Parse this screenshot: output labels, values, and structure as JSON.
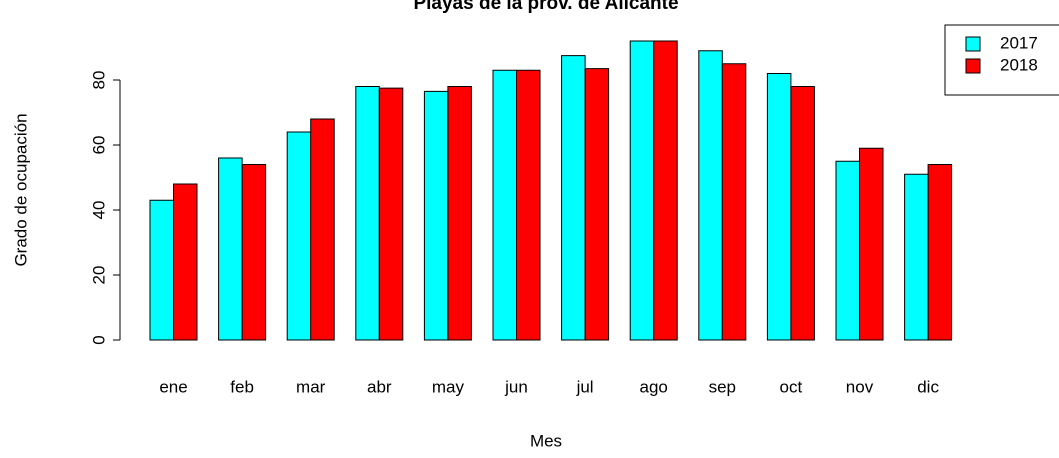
{
  "chart_data": {
    "type": "bar",
    "title": "Playas de la prov. de Alicante",
    "x_label": "Mes",
    "y_label": "Grado de ocupación",
    "categories": [
      "ene",
      "feb",
      "mar",
      "abr",
      "may",
      "jun",
      "jul",
      "ago",
      "sep",
      "oct",
      "nov",
      "dic"
    ],
    "series": [
      {
        "name": "2017",
        "color": "#00ffff",
        "values": [
          43,
          56,
          64,
          78,
          76.5,
          83,
          87.5,
          92,
          89,
          82,
          55,
          51
        ]
      },
      {
        "name": "2018",
        "color": "#ff0000",
        "values": [
          48,
          54,
          68,
          77.5,
          78,
          83,
          83.5,
          92,
          85,
          78,
          59,
          54
        ]
      }
    ],
    "ylim": [
      0,
      100
    ],
    "yticks": [
      0,
      20,
      40,
      60,
      80
    ],
    "grid": false,
    "legend": "top-right"
  }
}
